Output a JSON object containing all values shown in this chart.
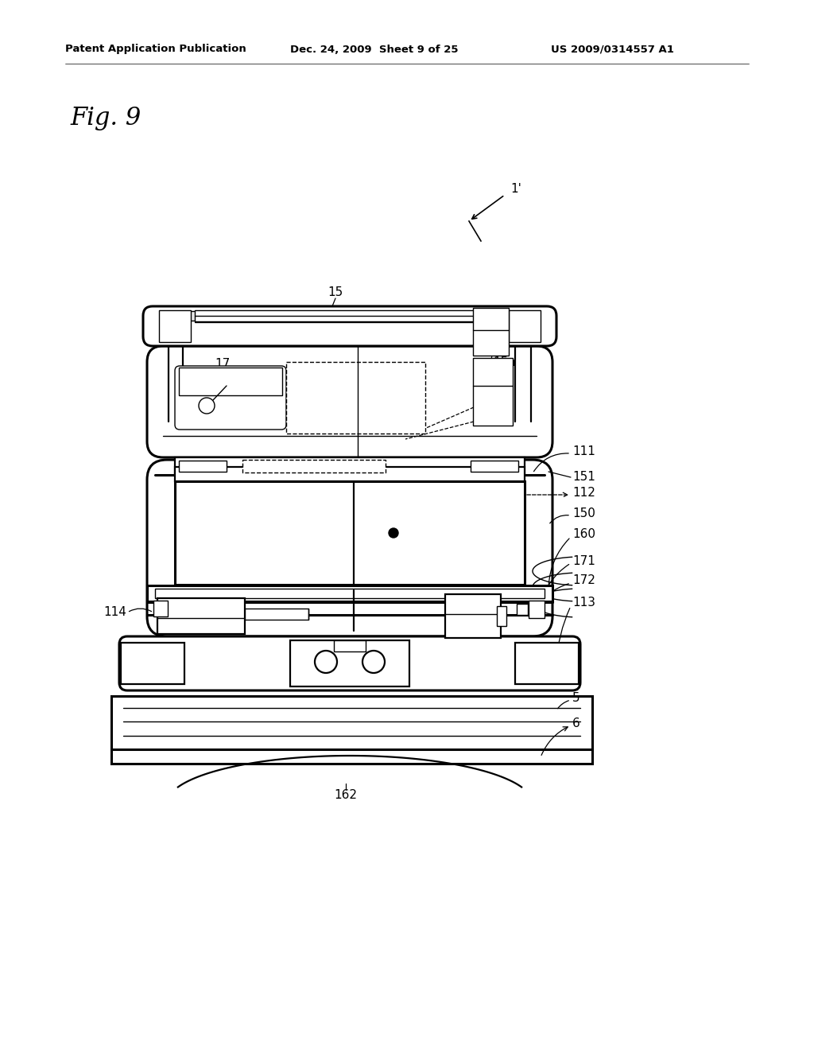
{
  "bg": "#ffffff",
  "header1": "Patent Application Publication",
  "header2": "Dec. 24, 2009  Sheet 9 of 25",
  "header3": "US 2009/0314557 A1",
  "fig_label": "Fig. 9",
  "lc": "black",
  "lw_main": 1.6,
  "lw_thick": 2.2,
  "lw_thin": 1.0,
  "fs_label": 11,
  "fs_header": 9.5
}
